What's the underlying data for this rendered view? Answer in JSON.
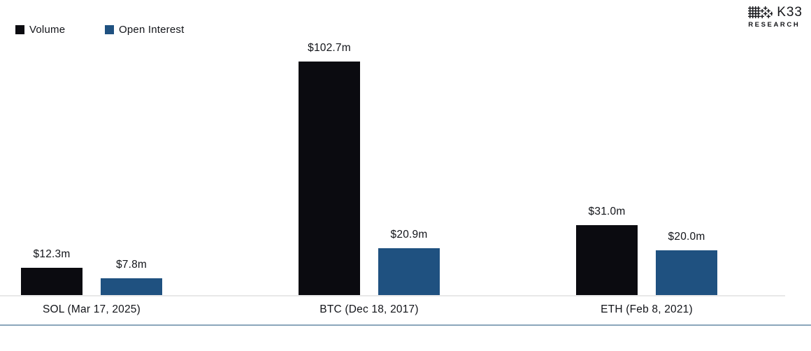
{
  "logo": {
    "brand": "K33",
    "sub": "RESEARCH"
  },
  "legend": {
    "items": [
      {
        "label": "Volume",
        "color": "#0b0b10"
      },
      {
        "label": "Open Interest",
        "color": "#1f5180"
      }
    ]
  },
  "chart_data": {
    "type": "bar",
    "orientation": "vertical",
    "categories": [
      "SOL (Mar 17, 2025)",
      "BTC (Dec 18, 2017)",
      "ETH (Feb 8, 2021)"
    ],
    "series": [
      {
        "name": "Volume",
        "color": "#0b0b10",
        "values": [
          12.3,
          102.7,
          31.0
        ],
        "labels": [
          "$12.3m",
          "$102.7m",
          "$31.0m"
        ]
      },
      {
        "name": "Open Interest",
        "color": "#1f5180",
        "values": [
          7.8,
          20.9,
          20.0
        ],
        "labels": [
          "$7.8m",
          "$20.9m",
          "$20.0m"
        ]
      }
    ],
    "value_unit": "millions USD",
    "ylim": [
      0,
      103
    ],
    "grid": false,
    "axes_shown": false,
    "legend_position": "top-left",
    "data_labels": "above-bars"
  }
}
